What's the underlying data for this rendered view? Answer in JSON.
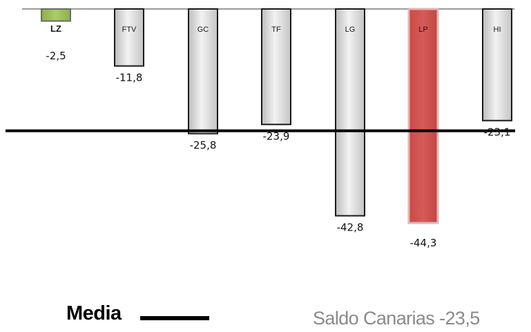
{
  "chart_data": {
    "type": "bar",
    "categories": [
      "LZ",
      "FTV",
      "GC",
      "TF",
      "LG",
      "LP",
      "HI"
    ],
    "values": [
      -2.5,
      -11.8,
      -25.8,
      -23.9,
      -42.8,
      -44.3,
      -23.1
    ],
    "value_labels": [
      "-2,5",
      "-11,8",
      "-25,8",
      "-23,9",
      "-42,8",
      "-44,3",
      "-23,1"
    ],
    "bar_colors": [
      "#9bbb59",
      "#d9d9d9",
      "#d9d9d9",
      "#d9d9d9",
      "#d9d9d9",
      "#c0504d",
      "#d9d9d9"
    ],
    "mean_value": -23.5,
    "ylim": [
      -46,
      0
    ],
    "grid": false
  },
  "legend": {
    "label": "Media"
  },
  "summary": {
    "text": "Saldo Canarias -23,5"
  }
}
